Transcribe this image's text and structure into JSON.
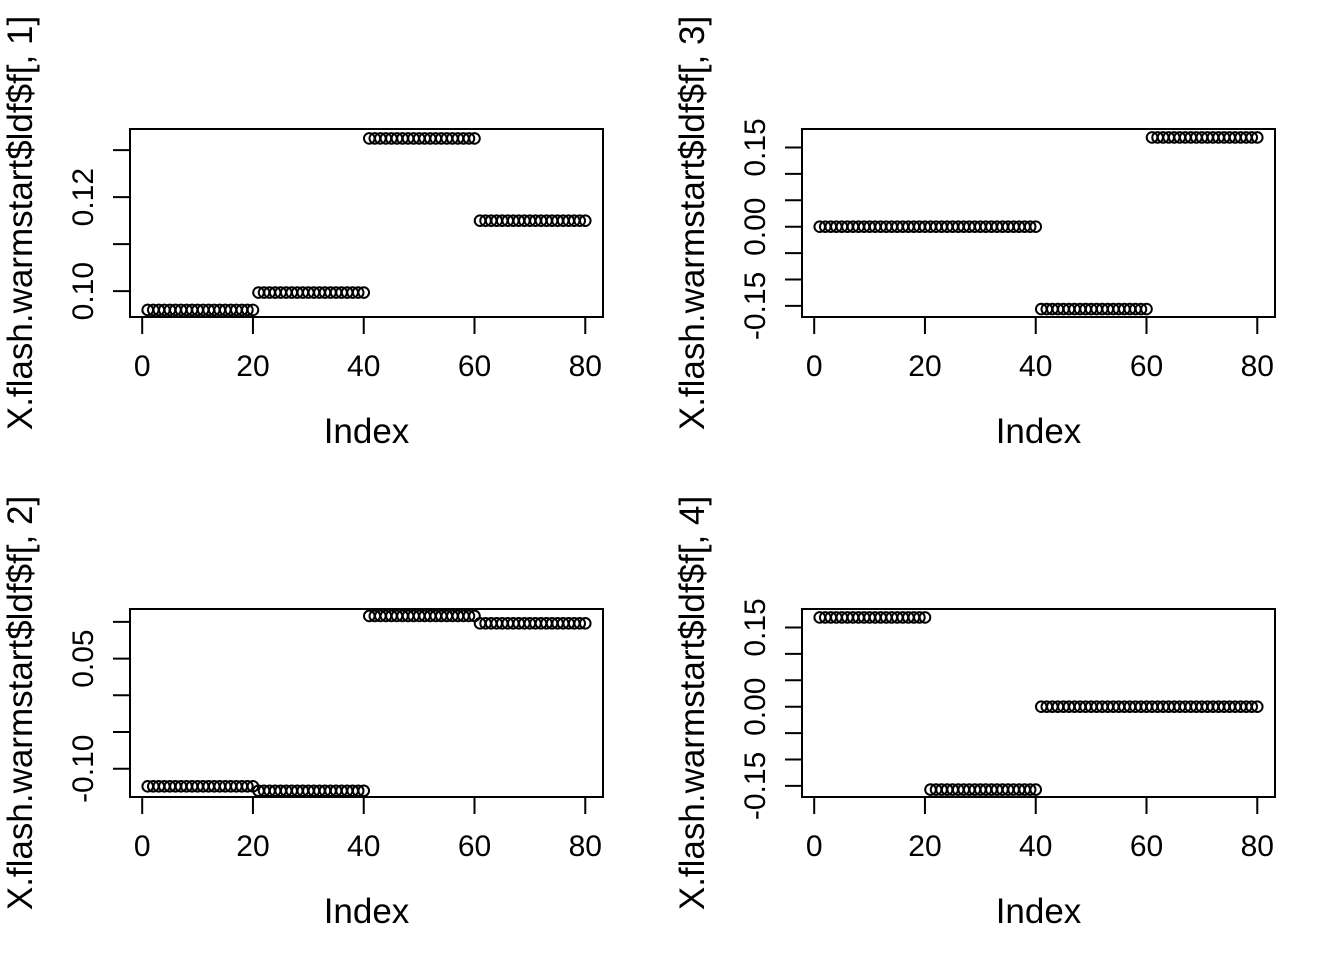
{
  "colors": {
    "foreground": "#000000",
    "background": "#FFFFFF"
  },
  "figure": {
    "layout": "2x2",
    "panel_count": 4
  },
  "chart_data": [
    {
      "type": "scatter",
      "point_style": "open-circle",
      "xlabel": "Index",
      "ylabel": "X.flash.warmstart$ldf$f[, 1]",
      "xlim": [
        -2.2,
        83.2
      ],
      "ylim": [
        0.0945,
        0.1345
      ],
      "x_ticks": [
        0,
        20,
        40,
        60,
        80
      ],
      "x_tick_labels": [
        "0",
        "20",
        "40",
        "60",
        "80"
      ],
      "y_ticks": [
        0.13,
        0.12,
        0.11,
        0.1
      ],
      "y_tick_labels": [
        "",
        "0.12",
        "",
        "0.10"
      ],
      "grid": false,
      "segments": [
        {
          "x_start": 1,
          "x_end": 20,
          "y": 0.096
        },
        {
          "x_start": 21,
          "x_end": 40,
          "y": 0.0997
        },
        {
          "x_start": 41,
          "x_end": 60,
          "y": 0.1325
        },
        {
          "x_start": 61,
          "x_end": 80,
          "y": 0.115
        }
      ]
    },
    {
      "type": "scatter",
      "point_style": "open-circle",
      "xlabel": "Index",
      "ylabel": "X.flash.warmstart$ldf$f[, 3]",
      "xlim": [
        -2.2,
        83.2
      ],
      "ylim": [
        -0.171,
        0.185
      ],
      "x_ticks": [
        0,
        20,
        40,
        60,
        80
      ],
      "x_tick_labels": [
        "0",
        "20",
        "40",
        "60",
        "80"
      ],
      "y_ticks": [
        0.15,
        0.1,
        0.05,
        0.0,
        -0.05,
        -0.1,
        -0.15
      ],
      "y_tick_labels": [
        "0.15",
        "",
        "",
        "0.00",
        "",
        "",
        "-0.15"
      ],
      "grid": false,
      "segments": [
        {
          "x_start": 1,
          "x_end": 40,
          "y": 0.0
        },
        {
          "x_start": 41,
          "x_end": 60,
          "y": -0.156
        },
        {
          "x_start": 61,
          "x_end": 80,
          "y": 0.169
        }
      ]
    },
    {
      "type": "scatter",
      "point_style": "open-circle",
      "xlabel": "Index",
      "ylabel": "X.flash.warmstart$ldf$f[, 2]",
      "xlim": [
        -2.2,
        83.2
      ],
      "ylim": [
        -0.1385,
        0.1175
      ],
      "x_ticks": [
        0,
        20,
        40,
        60,
        80
      ],
      "x_tick_labels": [
        "0",
        "20",
        "40",
        "60",
        "80"
      ],
      "y_ticks": [
        0.1,
        0.05,
        0.0,
        -0.05,
        -0.1
      ],
      "y_tick_labels": [
        "",
        "0.05",
        "",
        "",
        "-0.10"
      ],
      "grid": false,
      "segments": [
        {
          "x_start": 1,
          "x_end": 20,
          "y": -0.124
        },
        {
          "x_start": 21,
          "x_end": 40,
          "y": -0.13
        },
        {
          "x_start": 41,
          "x_end": 60,
          "y": 0.108
        },
        {
          "x_start": 61,
          "x_end": 80,
          "y": 0.098
        }
      ]
    },
    {
      "type": "scatter",
      "point_style": "open-circle",
      "xlabel": "Index",
      "ylabel": "X.flash.warmstart$ldf$f[, 4]",
      "xlim": [
        -2.2,
        83.2
      ],
      "ylim": [
        -0.171,
        0.185
      ],
      "x_ticks": [
        0,
        20,
        40,
        60,
        80
      ],
      "x_tick_labels": [
        "0",
        "20",
        "40",
        "60",
        "80"
      ],
      "y_ticks": [
        0.15,
        0.1,
        0.05,
        0.0,
        -0.05,
        -0.1,
        -0.15
      ],
      "y_tick_labels": [
        "0.15",
        "",
        "",
        "0.00",
        "",
        "",
        "-0.15"
      ],
      "grid": false,
      "segments": [
        {
          "x_start": 1,
          "x_end": 20,
          "y": 0.169
        },
        {
          "x_start": 21,
          "x_end": 40,
          "y": -0.157
        },
        {
          "x_start": 41,
          "x_end": 80,
          "y": 0.0
        }
      ]
    }
  ]
}
